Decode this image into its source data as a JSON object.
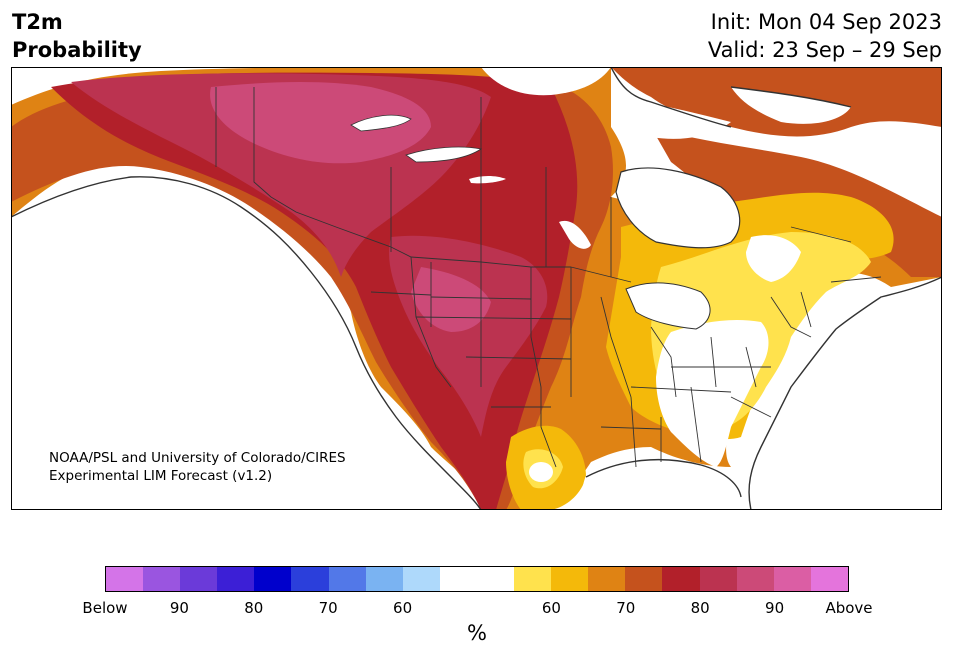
{
  "header": {
    "title_line1": "T2m",
    "title_line2": "Probability",
    "init": "Init: Mon 04 Sep 2023",
    "valid": "Valid: 23 Sep – 29 Sep"
  },
  "credit": {
    "line1": "NOAA/PSL and University of Colorado/CIRES",
    "line2": "Experimental LIM Forecast (v1.2)"
  },
  "colorbar": {
    "colors": [
      "#d474e8",
      "#9a55e0",
      "#6b3ad9",
      "#3c1fd6",
      "#0000cc",
      "#2b3fdb",
      "#5278e8",
      "#7ab3f2",
      "#aed9fb",
      "#ffffff",
      "#ffffff",
      "#ffe24d",
      "#f4b90a",
      "#df8314",
      "#c5521d",
      "#b2202a",
      "#bb3350",
      "#cc4a78",
      "#db5ea4",
      "#e474dc"
    ],
    "ticks": [
      "Below",
      "90",
      "80",
      "70",
      "60",
      "60",
      "70",
      "80",
      "90",
      "Above"
    ],
    "unit": "%"
  },
  "map": {
    "ocean_color": "#ffffff",
    "border_color": "#333333"
  }
}
